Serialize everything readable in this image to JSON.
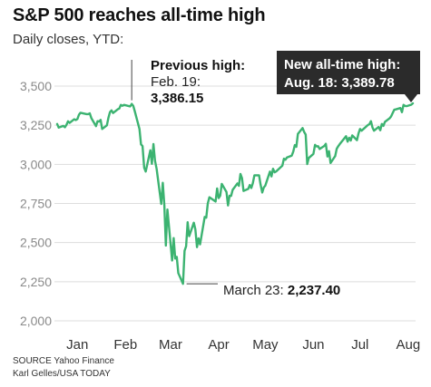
{
  "header": {
    "title": "S&P 500 reaches all-time high",
    "subtitle": "Daily closes, YTD:"
  },
  "annotations": {
    "previous_high_title": "Previous high:",
    "previous_high_date": "Feb. 19:",
    "previous_high_value": "3,386.15",
    "low_date": "March 23: ",
    "low_value": "2,237.40",
    "new_high_line1": "New all-time high:",
    "new_high_line2": "Aug. 18: 3,389.78"
  },
  "footer": {
    "source": "SOURCE Yahoo Finance",
    "credit": "Karl Gelles/USA TODAY"
  },
  "colors": {
    "line": "#3cb371",
    "grid": "#dddddd",
    "callout_bg": "#2b2b2b"
  },
  "chart_data": {
    "type": "line",
    "title": "S&P 500 reaches all-time high",
    "subtitle": "Daily closes, YTD:",
    "xlabel": "",
    "ylabel": "",
    "ylim": [
      2000,
      3550
    ],
    "yticks": [
      "2,000",
      "2,250",
      "2,500",
      "2,750",
      "3,000",
      "3,250",
      "3,500"
    ],
    "ytick_values": [
      2000,
      2250,
      2500,
      2750,
      3000,
      3250,
      3500
    ],
    "xticks": [
      "Jan",
      "Feb",
      "Mar",
      "Apr",
      "May",
      "Jun",
      "Jul",
      "Aug"
    ],
    "xtick_dates": [
      "2020-01-15",
      "2020-02-15",
      "2020-03-15",
      "2020-04-15",
      "2020-05-15",
      "2020-06-15",
      "2020-07-15",
      "2020-08-15"
    ],
    "grid": true,
    "series": [
      {
        "points": [
          [
            "2020-01-02",
            3258
          ],
          [
            "2020-01-03",
            3235
          ],
          [
            "2020-01-06",
            3246
          ],
          [
            "2020-01-07",
            3237
          ],
          [
            "2020-01-08",
            3253
          ],
          [
            "2020-01-09",
            3275
          ],
          [
            "2020-01-10",
            3265
          ],
          [
            "2020-01-13",
            3288
          ],
          [
            "2020-01-14",
            3283
          ],
          [
            "2020-01-15",
            3289
          ],
          [
            "2020-01-16",
            3317
          ],
          [
            "2020-01-17",
            3330
          ],
          [
            "2020-01-21",
            3321
          ],
          [
            "2020-01-22",
            3321
          ],
          [
            "2020-01-23",
            3326
          ],
          [
            "2020-01-24",
            3295
          ],
          [
            "2020-01-27",
            3244
          ],
          [
            "2020-01-28",
            3276
          ],
          [
            "2020-01-29",
            3273
          ],
          [
            "2020-01-30",
            3284
          ],
          [
            "2020-01-31",
            3226
          ],
          [
            "2020-02-03",
            3249
          ],
          [
            "2020-02-04",
            3298
          ],
          [
            "2020-02-05",
            3334
          ],
          [
            "2020-02-06",
            3345
          ],
          [
            "2020-02-07",
            3328
          ],
          [
            "2020-02-10",
            3352
          ],
          [
            "2020-02-11",
            3357
          ],
          [
            "2020-02-12",
            3380
          ],
          [
            "2020-02-13",
            3374
          ],
          [
            "2020-02-14",
            3380
          ],
          [
            "2020-02-18",
            3370
          ],
          [
            "2020-02-19",
            3386
          ],
          [
            "2020-02-20",
            3373
          ],
          [
            "2020-02-21",
            3338
          ],
          [
            "2020-02-24",
            3226
          ],
          [
            "2020-02-25",
            3128
          ],
          [
            "2020-02-26",
            3116
          ],
          [
            "2020-02-27",
            2979
          ],
          [
            "2020-02-28",
            2954
          ],
          [
            "2020-03-02",
            3090
          ],
          [
            "2020-03-03",
            3003
          ],
          [
            "2020-03-04",
            3130
          ],
          [
            "2020-03-05",
            3024
          ],
          [
            "2020-03-06",
            2972
          ],
          [
            "2020-03-09",
            2747
          ],
          [
            "2020-03-10",
            2882
          ],
          [
            "2020-03-11",
            2741
          ],
          [
            "2020-03-12",
            2481
          ],
          [
            "2020-03-13",
            2711
          ],
          [
            "2020-03-16",
            2386
          ],
          [
            "2020-03-17",
            2529
          ],
          [
            "2020-03-18",
            2398
          ],
          [
            "2020-03-19",
            2409
          ],
          [
            "2020-03-20",
            2305
          ],
          [
            "2020-03-23",
            2237
          ],
          [
            "2020-03-24",
            2447
          ],
          [
            "2020-03-25",
            2476
          ],
          [
            "2020-03-26",
            2630
          ],
          [
            "2020-03-27",
            2541
          ],
          [
            "2020-03-30",
            2627
          ],
          [
            "2020-03-31",
            2585
          ],
          [
            "2020-04-01",
            2471
          ],
          [
            "2020-04-02",
            2527
          ],
          [
            "2020-04-03",
            2489
          ],
          [
            "2020-04-06",
            2664
          ],
          [
            "2020-04-07",
            2659
          ],
          [
            "2020-04-08",
            2750
          ],
          [
            "2020-04-09",
            2790
          ],
          [
            "2020-04-13",
            2762
          ],
          [
            "2020-04-14",
            2846
          ],
          [
            "2020-04-15",
            2784
          ],
          [
            "2020-04-16",
            2800
          ],
          [
            "2020-04-17",
            2875
          ],
          [
            "2020-04-20",
            2823
          ],
          [
            "2020-04-21",
            2737
          ],
          [
            "2020-04-22",
            2799
          ],
          [
            "2020-04-23",
            2798
          ],
          [
            "2020-04-24",
            2837
          ],
          [
            "2020-04-27",
            2878
          ],
          [
            "2020-04-28",
            2863
          ],
          [
            "2020-04-29",
            2939
          ],
          [
            "2020-04-30",
            2912
          ],
          [
            "2020-05-01",
            2830
          ],
          [
            "2020-05-04",
            2843
          ],
          [
            "2020-05-05",
            2868
          ],
          [
            "2020-05-06",
            2849
          ],
          [
            "2020-05-07",
            2881
          ],
          [
            "2020-05-08",
            2930
          ],
          [
            "2020-05-11",
            2930
          ],
          [
            "2020-05-12",
            2870
          ],
          [
            "2020-05-13",
            2820
          ],
          [
            "2020-05-14",
            2852
          ],
          [
            "2020-05-15",
            2864
          ],
          [
            "2020-05-18",
            2954
          ],
          [
            "2020-05-19",
            2923
          ],
          [
            "2020-05-20",
            2972
          ],
          [
            "2020-05-21",
            2949
          ],
          [
            "2020-05-22",
            2955
          ],
          [
            "2020-05-26",
            2992
          ],
          [
            "2020-05-27",
            3036
          ],
          [
            "2020-05-28",
            3030
          ],
          [
            "2020-05-29",
            3044
          ],
          [
            "2020-06-01",
            3056
          ],
          [
            "2020-06-02",
            3081
          ],
          [
            "2020-06-03",
            3123
          ],
          [
            "2020-06-04",
            3112
          ],
          [
            "2020-06-05",
            3194
          ],
          [
            "2020-06-08",
            3232
          ],
          [
            "2020-06-09",
            3207
          ],
          [
            "2020-06-10",
            3190
          ],
          [
            "2020-06-11",
            3002
          ],
          [
            "2020-06-12",
            3041
          ],
          [
            "2020-06-15",
            3067
          ],
          [
            "2020-06-16",
            3125
          ],
          [
            "2020-06-17",
            3114
          ],
          [
            "2020-06-18",
            3116
          ],
          [
            "2020-06-19",
            3098
          ],
          [
            "2020-06-22",
            3118
          ],
          [
            "2020-06-23",
            3131
          ],
          [
            "2020-06-24",
            3050
          ],
          [
            "2020-06-25",
            3084
          ],
          [
            "2020-06-26",
            3009
          ],
          [
            "2020-06-29",
            3053
          ],
          [
            "2020-06-30",
            3100
          ],
          [
            "2020-07-01",
            3116
          ],
          [
            "2020-07-02",
            3130
          ],
          [
            "2020-07-06",
            3180
          ],
          [
            "2020-07-07",
            3145
          ],
          [
            "2020-07-08",
            3170
          ],
          [
            "2020-07-09",
            3152
          ],
          [
            "2020-07-10",
            3185
          ],
          [
            "2020-07-13",
            3155
          ],
          [
            "2020-07-14",
            3197
          ],
          [
            "2020-07-15",
            3226
          ],
          [
            "2020-07-16",
            3215
          ],
          [
            "2020-07-17",
            3224
          ],
          [
            "2020-07-20",
            3251
          ],
          [
            "2020-07-21",
            3257
          ],
          [
            "2020-07-22",
            3276
          ],
          [
            "2020-07-23",
            3236
          ],
          [
            "2020-07-24",
            3215
          ],
          [
            "2020-07-27",
            3239
          ],
          [
            "2020-07-28",
            3218
          ],
          [
            "2020-07-29",
            3258
          ],
          [
            "2020-07-30",
            3246
          ],
          [
            "2020-07-31",
            3271
          ],
          [
            "2020-08-03",
            3294
          ],
          [
            "2020-08-04",
            3306
          ],
          [
            "2020-08-05",
            3327
          ],
          [
            "2020-08-06",
            3349
          ],
          [
            "2020-08-07",
            3351
          ],
          [
            "2020-08-10",
            3360
          ],
          [
            "2020-08-11",
            3333
          ],
          [
            "2020-08-12",
            3380
          ],
          [
            "2020-08-13",
            3373
          ],
          [
            "2020-08-14",
            3372
          ],
          [
            "2020-08-17",
            3381
          ],
          [
            "2020-08-18",
            3390
          ]
        ]
      }
    ]
  }
}
